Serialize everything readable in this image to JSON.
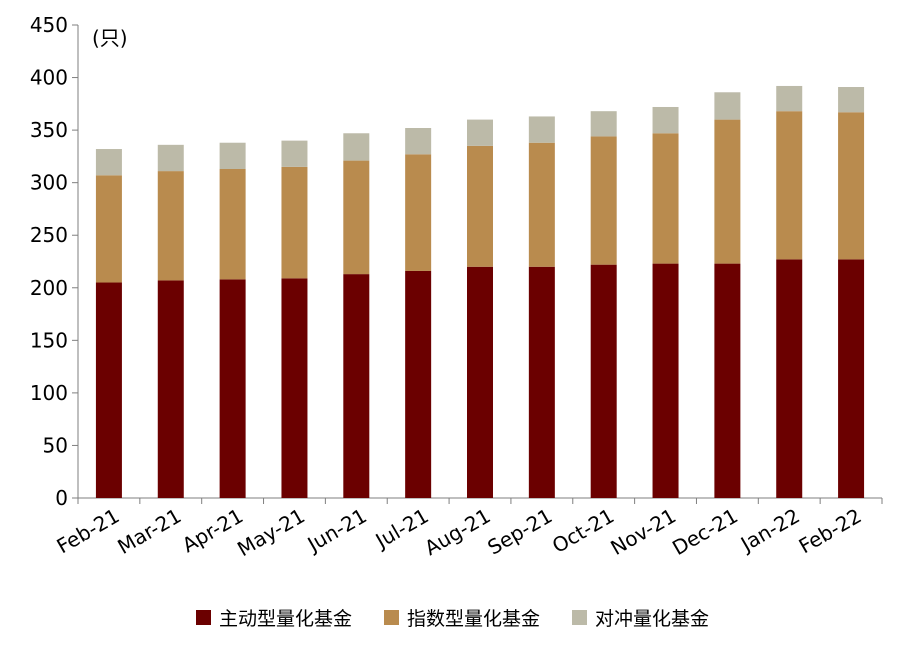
{
  "chart_data": {
    "type": "bar",
    "stacked": true,
    "unit_label": "(只)",
    "categories": [
      "Feb-21",
      "Mar-21",
      "Apr-21",
      "May-21",
      "Jun-21",
      "Jul-21",
      "Aug-21",
      "Sep-21",
      "Oct-21",
      "Nov-21",
      "Dec-21",
      "Jan-22",
      "Feb-22"
    ],
    "series": [
      {
        "name": "主动型量化基金",
        "color": "#6b0000",
        "values": [
          205,
          207,
          208,
          209,
          213,
          216,
          220,
          220,
          222,
          223,
          223,
          227,
          227
        ]
      },
      {
        "name": "指数型量化基金",
        "color": "#b98b4e",
        "values": [
          102,
          104,
          105,
          106,
          108,
          111,
          115,
          118,
          122,
          124,
          137,
          141,
          140
        ]
      },
      {
        "name": "对冲量化基金",
        "color": "#bcbaa8",
        "values": [
          25,
          25,
          25,
          25,
          26,
          25,
          25,
          25,
          24,
          25,
          26,
          24,
          24
        ]
      }
    ],
    "ylim": [
      0,
      450
    ],
    "yticks": [
      0,
      50,
      100,
      150,
      200,
      250,
      300,
      350,
      400,
      450
    ],
    "legend": "bottom",
    "grid": false
  }
}
